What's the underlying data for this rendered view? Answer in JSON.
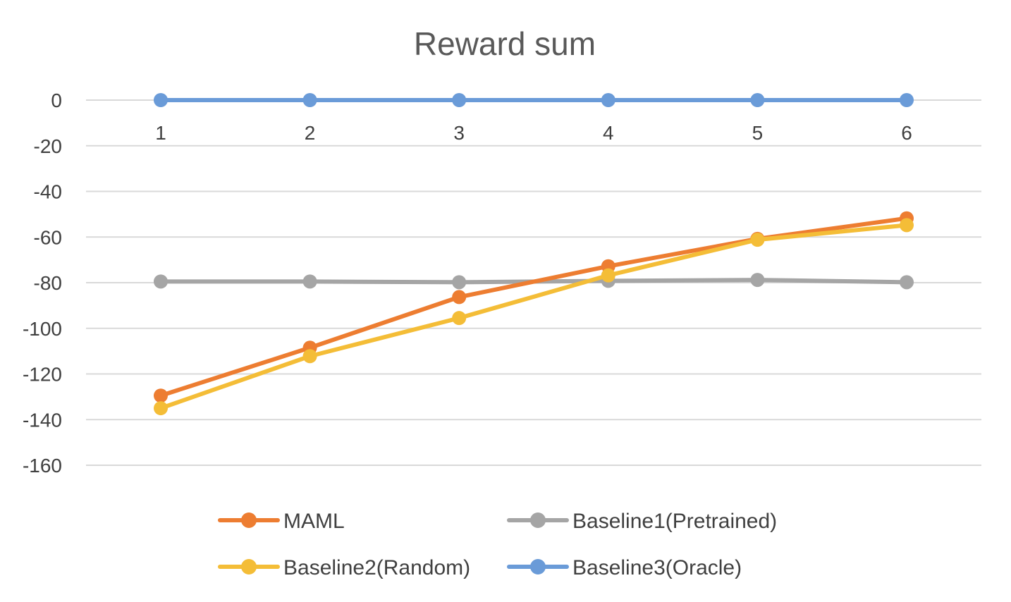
{
  "chart_data": {
    "type": "line",
    "title": "Reward sum",
    "xlabel": "",
    "ylabel": "",
    "categories": [
      "1",
      "2",
      "3",
      "4",
      "5",
      "6"
    ],
    "ylim": [
      -160,
      0
    ],
    "yticks": [
      "0",
      "-20",
      "-40",
      "-60",
      "-80",
      "-100",
      "-120",
      "-140",
      "-160"
    ],
    "grid": true,
    "legend_position": "bottom",
    "series": [
      {
        "name": "MAML",
        "color": "#ED7D31",
        "values": [
          -129.5,
          -108.5,
          -86.3,
          -72.8,
          -60.8,
          -51.8
        ]
      },
      {
        "name": "Baseline1(Pretrained)",
        "color": "#A5A5A5",
        "values": [
          -79.5,
          -79.5,
          -79.8,
          -79.2,
          -78.8,
          -79.8
        ]
      },
      {
        "name": "Baseline2(Random)",
        "color": "#F4BD37",
        "values": [
          -135,
          -112.2,
          -95.5,
          -76.8,
          -61.2,
          -54.8
        ]
      },
      {
        "name": "Baseline3(Oracle)",
        "color": "#6A9BD8",
        "values": [
          0,
          0,
          0,
          0,
          0,
          0
        ]
      }
    ]
  }
}
